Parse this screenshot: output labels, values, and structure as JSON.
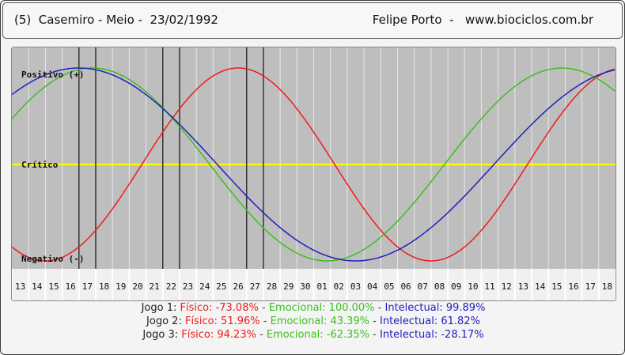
{
  "header": {
    "left": "(5)  Casemiro - Meio -  23/02/1992",
    "right": "Felipe Porto  -   www.biociclos.com.br"
  },
  "colors": {
    "background": "#bebebe",
    "grid": "#e8e8e8",
    "critical_line": "#ffff00",
    "fisico": "#ee1c1c",
    "emocional": "#3cbf1c",
    "intelectual": "#2020c0",
    "game_marker": "#333333"
  },
  "chart_data": {
    "type": "line",
    "x_ticks": [
      "13",
      "14",
      "15",
      "16",
      "17",
      "18",
      "19",
      "20",
      "21",
      "22",
      "23",
      "24",
      "25",
      "26",
      "27",
      "28",
      "29",
      "30",
      "01",
      "02",
      "03",
      "04",
      "05",
      "06",
      "07",
      "08",
      "09",
      "10",
      "11",
      "12",
      "13",
      "14",
      "15",
      "16",
      "17",
      "18"
    ],
    "ylim": [
      -100,
      100
    ],
    "labels": {
      "positive": "Positivo (+)",
      "critical": "Crítico",
      "negative": "Negativo (-)"
    },
    "periods": {
      "fisico": 23,
      "emocional": 28,
      "intelectual": 33
    },
    "series": [
      {
        "name": "Físico",
        "key": "fisico",
        "first_peak_index": 13.0
      },
      {
        "name": "Emocional",
        "key": "emocional",
        "first_peak_index": 4.3
      },
      {
        "name": "Intelectual",
        "key": "intelectual",
        "first_peak_index": 3.5
      }
    ],
    "game_markers": [
      {
        "label": "Jogo 1",
        "index": [
          4,
          5
        ]
      },
      {
        "label": "Jogo 2",
        "index": [
          9,
          10
        ]
      },
      {
        "label": "Jogo 3",
        "index": [
          14,
          15
        ]
      }
    ],
    "results": [
      {
        "label": "Jogo 1:",
        "fisico": "Físico: -73.08%",
        "emocional": "Emocional: 100.00%",
        "intelectual": "Intelectual: 99.89%"
      },
      {
        "label": "Jogo 2:",
        "fisico": "Físico: 51.96%",
        "emocional": "Emocional: 43.39%",
        "intelectual": "Intelectual: 61.82%"
      },
      {
        "label": "Jogo 3:",
        "fisico": "Físico: 94.23%",
        "emocional": "Emocional: -62.35%",
        "intelectual": "Intelectual: -28.17%"
      }
    ],
    "separator": " - "
  }
}
